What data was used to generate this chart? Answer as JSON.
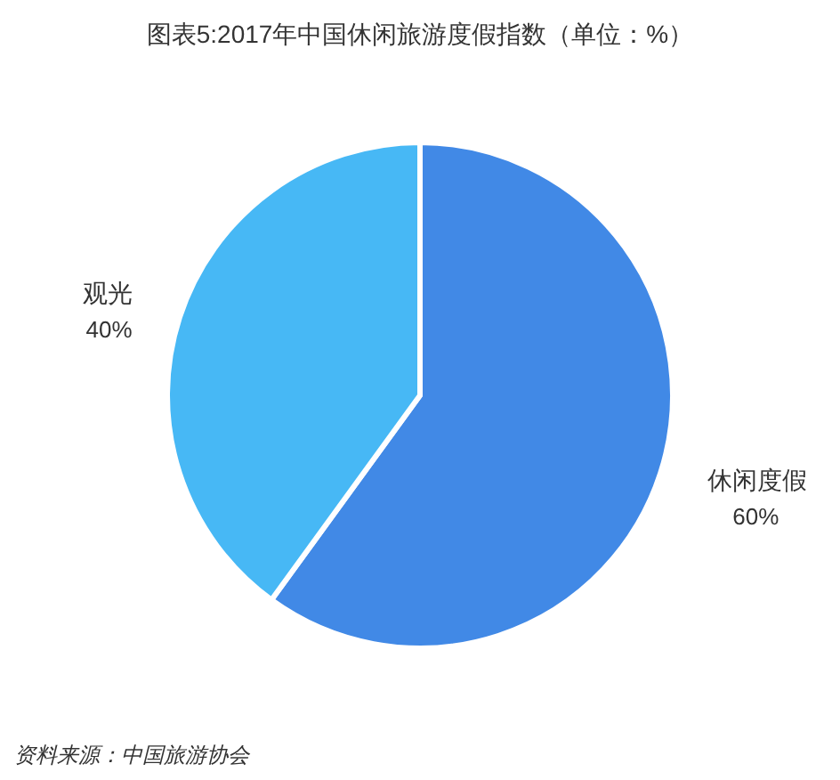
{
  "chart_data": {
    "type": "pie",
    "title": "图表5:2017年中国休闲旅游度假指数（单位：%）",
    "categories": [
      "休闲度假",
      "观光"
    ],
    "values": [
      60,
      40
    ],
    "colors": [
      "#4189e6",
      "#47b8f5"
    ],
    "value_labels": [
      "60%",
      "40%"
    ],
    "annotations": [
      "资料来源：中国旅游协会"
    ]
  }
}
